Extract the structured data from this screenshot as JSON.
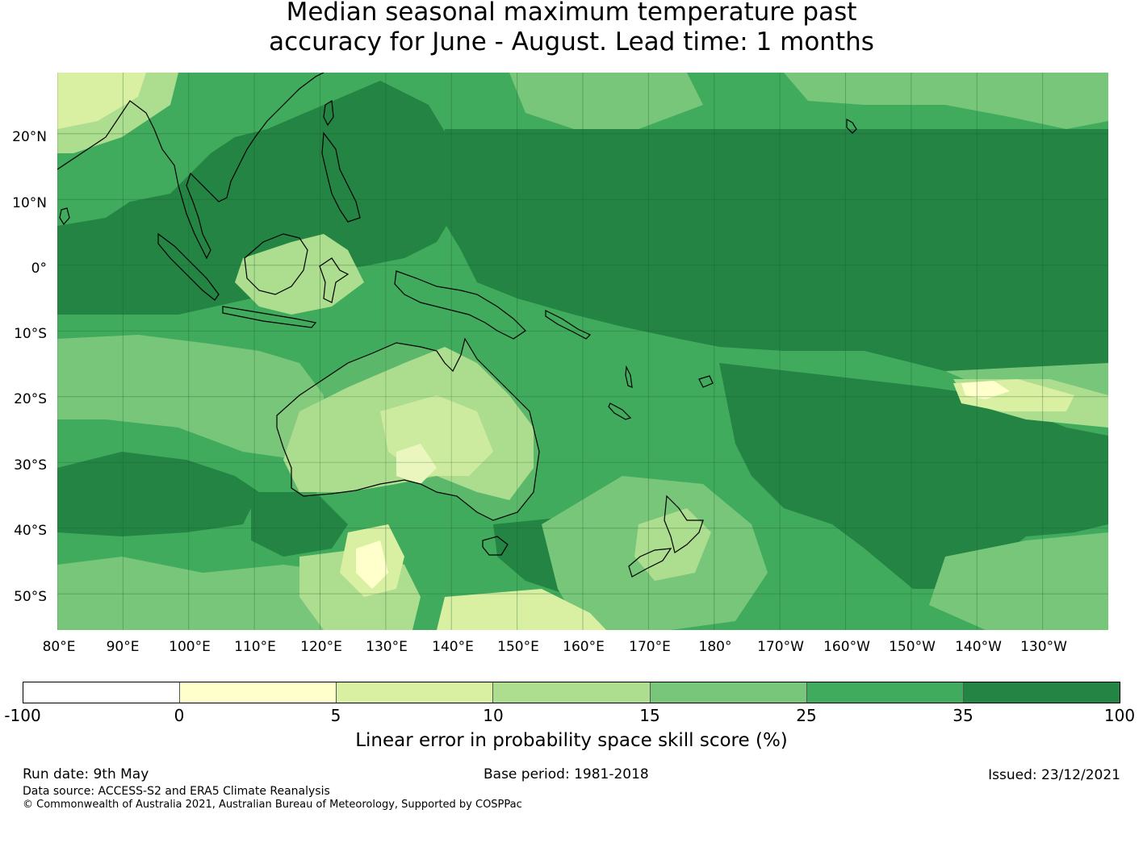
{
  "title": {
    "line1": "Median seasonal maximum temperature past",
    "line2": "accuracy for June - August. Lead time: 1 months"
  },
  "map": {
    "region": "Western Pacific and Australia",
    "latitude_labels": [
      "20°N",
      "10°N",
      "0°",
      "10°S",
      "20°S",
      "30°S",
      "40°S",
      "50°S"
    ],
    "longitude_labels": [
      "80°E",
      "90°E",
      "100°E",
      "110°E",
      "120°E",
      "130°E",
      "140°E",
      "150°E",
      "160°E",
      "170°E",
      "180°",
      "170°W",
      "160°W",
      "150°W",
      "140°W",
      "130°W"
    ],
    "coastline_color": "#000000",
    "gridlines": true
  },
  "colorbar": {
    "ticks": [
      "-100",
      "0",
      "5",
      "10",
      "15",
      "25",
      "35",
      "100"
    ],
    "colors": [
      "#ffffff",
      "#ffffcc",
      "#d9f0a3",
      "#addd8e",
      "#78c679",
      "#41ab5d",
      "#238443"
    ],
    "label": "Linear error in probability space skill score (%)"
  },
  "footer": {
    "run_date": "Run date: 9th May",
    "base_period": "Base period: 1981-2018",
    "issued": "Issued: 23/12/2021",
    "data_source": "Data source: ACCESS-S2 and ERA5 Climate Reanalysis",
    "copyright": "© Commonwealth of Australia 2021, Australian Bureau of Meteorology, Supported by COSPPac"
  }
}
